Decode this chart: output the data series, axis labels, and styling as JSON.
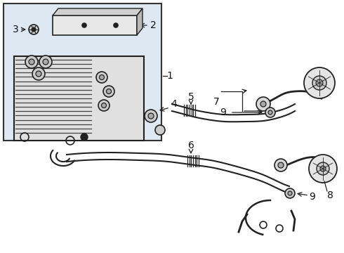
{
  "background_color": "#ffffff",
  "line_color": "#222222",
  "box_fill": "#dde8f2",
  "box_border": "#333333",
  "figsize": [
    4.9,
    3.6
  ],
  "dpi": 100
}
